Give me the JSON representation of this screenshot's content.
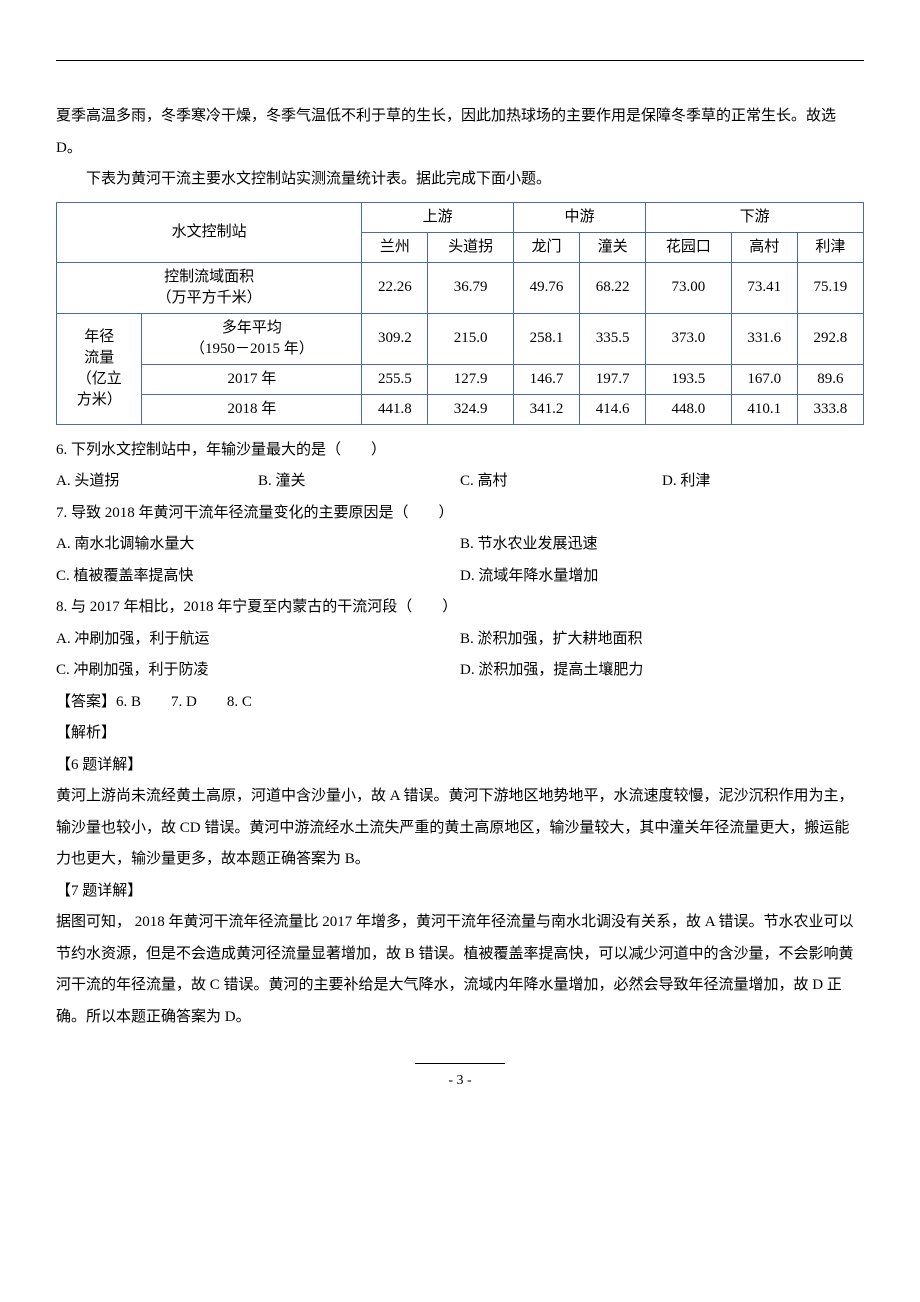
{
  "para1": "夏季高温多雨，冬季寒冷干燥，冬季气温低不利于草的生长，因此加热球场的主要作用是保障冬季草的正常生长。故选 D。",
  "para2": "下表为黄河干流主要水文控制站实测流量统计表。据此完成下面小题。",
  "table": {
    "border_color": "#4a6aa8",
    "header_row1": {
      "c1": "水文控制站",
      "c2": "上游",
      "c3": "中游",
      "c4": "下游"
    },
    "header_row2": [
      "兰州",
      "头道拐",
      "龙门",
      "潼关",
      "花园口",
      "高村",
      "利津"
    ],
    "row_area": {
      "label": "控制流域面积\n（万平方千米）",
      "vals": [
        "22.26",
        "36.79",
        "49.76",
        "68.22",
        "73.00",
        "73.41",
        "75.19"
      ]
    },
    "flow_label": "年径\n流量\n（亿立\n方米）",
    "row_avg": {
      "label": "多年平均\n（1950－2015 年）",
      "vals": [
        "309.2",
        "215.0",
        "258.1",
        "335.5",
        "373.0",
        "331.6",
        "292.8"
      ]
    },
    "row_2017": {
      "label": "2017 年",
      "vals": [
        "255.5",
        "127.9",
        "146.7",
        "197.7",
        "193.5",
        "167.0",
        "89.6"
      ]
    },
    "row_2018": {
      "label": "2018 年",
      "vals": [
        "441.8",
        "324.9",
        "341.2",
        "414.6",
        "448.0",
        "410.1",
        "333.8"
      ]
    }
  },
  "q6": {
    "stem": "6.  下列水文控制站中，年输沙量最大的是（　　）",
    "opts": [
      "A. 头道拐",
      "B. 潼关",
      "C. 高村",
      "D. 利津"
    ]
  },
  "q7": {
    "stem": "7.  导致 2018 年黄河干流年径流量变化的主要原因是（　　）",
    "opts": [
      "A. 南水北调输水量大",
      "B. 节水农业发展迅速",
      "C. 植被覆盖率提高快",
      "D. 流域年降水量增加"
    ]
  },
  "q8": {
    "stem": "8.  与 2017 年相比，2018 年宁夏至内蒙古的干流河段（　　）",
    "opts": [
      "A. 冲刷加强，利于航运",
      "B. 淤积加强，扩大耕地面积",
      "C. 冲刷加强，利于防凌",
      "D. 淤积加强，提高土壤肥力"
    ]
  },
  "answers": "【答案】6. B　　7. D　　8. C",
  "jiexi": "【解析】",
  "d6_title": "【6 题详解】",
  "d6_body": "黄河上游尚未流经黄土高原，河道中含沙量小，故 A 错误。黄河下游地区地势地平，水流速度较慢，泥沙沉积作用为主，输沙量也较小，故 CD 错误。黄河中游流经水土流失严重的黄土高原地区，输沙量较大，其中潼关年径流量更大，搬运能力也更大，输沙量更多，故本题正确答案为 B。",
  "d7_title": "【7 题详解】",
  "d7_body": "据图可知，  2018 年黄河干流年径流量比 2017 年增多，黄河干流年径流量与南水北调没有关系，故 A 错误。节水农业可以节约水资源，但是不会造成黄河径流量显著增加，故 B 错误。植被覆盖率提高快，可以减少河道中的含沙量，不会影响黄河干流的年径流量，故 C 错误。黄河的主要补给是大气降水，流域内年降水量增加，必然会导致年径流量增加，故 D 正确。所以本题正确答案为 D。",
  "page_no": "- 3 -",
  "watermark": ""
}
